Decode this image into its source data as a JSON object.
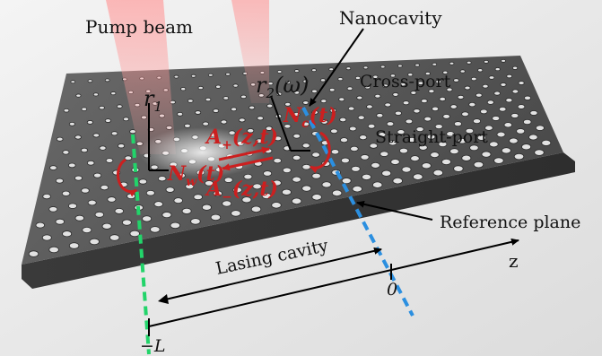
{
  "labels": {
    "pump_beam": "Pump beam",
    "nanocavity": "Nanocavity",
    "cross_port": "Cross-port",
    "straight_port": "Straight-port",
    "reference_plane": "Reference plane",
    "lasing_cavity": "Lasing cavity",
    "z_axis": "z",
    "origin": "0",
    "minus_L": "−L",
    "r1": "r",
    "r1_sub": "1",
    "r2": "r",
    "r2_sub": "2",
    "r2_arg": "(ω)",
    "A_plus": "A",
    "A_plus_sub": "+",
    "A_plus_arg": "(z,t)",
    "A_minus": "A",
    "A_minus_sub": "−",
    "A_minus_arg": "(z,t)",
    "N_w": "N",
    "N_w_sub": "w",
    "N_w_arg": "(t)",
    "N_c": "N",
    "N_c_sub": "c",
    "N_c_arg": "(t)"
  },
  "colors": {
    "slab": "#585858",
    "hole": "#e6e6e6",
    "pump": "#ff8a8a",
    "green_dash": "#22d46a",
    "blue_dash": "#2b8fe0",
    "red": "#cc1f1f"
  }
}
